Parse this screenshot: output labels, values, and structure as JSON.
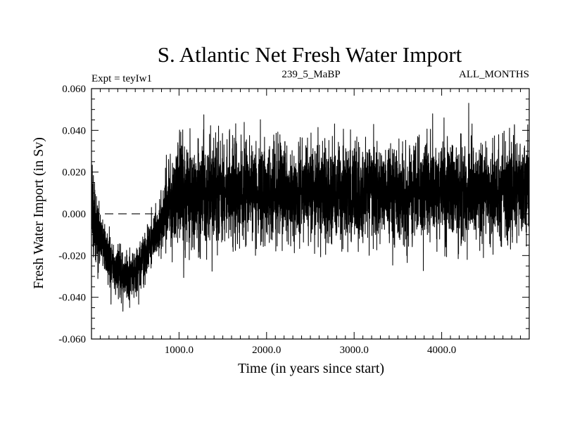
{
  "chart_data": {
    "type": "line",
    "title": "S. Atlantic Net Fresh Water Import",
    "subtitle_left": "Expt = teyIw1",
    "subtitle_center": "239_5_MaBP",
    "subtitle_right": "ALL_MONTHS",
    "xlabel": "Time (in years since start)",
    "ylabel": "Fresh Water Import (in Sv)",
    "xlim": [
      0,
      5000
    ],
    "ylim": [
      -0.06,
      0.06
    ],
    "x_ticks": [
      1000,
      2000,
      3000,
      4000
    ],
    "x_tick_labels": [
      "1000.0",
      "2000.0",
      "3000.0",
      "4000.0"
    ],
    "y_ticks": [
      -0.06,
      -0.04,
      -0.02,
      0.0,
      0.02,
      0.04,
      0.06
    ],
    "y_tick_labels": [
      "-0.060",
      "-0.040",
      "-0.020",
      "0.000",
      "0.020",
      "0.040",
      "0.060"
    ],
    "reference_line": {
      "y": 0.0,
      "style": "dashed",
      "x_range": [
        0,
        800
      ]
    },
    "series": [
      {
        "name": "Net fresh water import",
        "color": "#000000",
        "x": [
          0,
          10,
          25,
          50,
          75,
          100,
          150,
          200,
          250,
          300,
          350,
          400,
          450,
          500,
          550,
          600,
          650,
          700,
          750,
          800,
          850,
          900,
          950,
          1000,
          1100,
          1200,
          1400,
          1600,
          1800,
          2000,
          2200,
          2400,
          2600,
          2800,
          3000,
          3200,
          3400,
          3600,
          3800,
          4000,
          4200,
          4400,
          4600,
          4800,
          5000
        ],
        "values": [
          0.0,
          0.008,
          -0.002,
          -0.008,
          -0.01,
          -0.012,
          -0.016,
          -0.022,
          -0.026,
          -0.028,
          -0.03,
          -0.03,
          -0.029,
          -0.027,
          -0.024,
          -0.021,
          -0.017,
          -0.013,
          -0.008,
          -0.004,
          0.0,
          0.004,
          0.007,
          0.009,
          0.01,
          0.01,
          0.01,
          0.01,
          0.009,
          0.01,
          0.01,
          0.011,
          0.011,
          0.01,
          0.011,
          0.011,
          0.01,
          0.01,
          0.011,
          0.011,
          0.012,
          0.011,
          0.011,
          0.012,
          0.012
        ],
        "variability": [
          0.01,
          0.014,
          0.013,
          0.01,
          0.01,
          0.009,
          0.008,
          0.008,
          0.008,
          0.008,
          0.008,
          0.008,
          0.008,
          0.008,
          0.008,
          0.008,
          0.008,
          0.008,
          0.009,
          0.01,
          0.011,
          0.012,
          0.014,
          0.016,
          0.017,
          0.017,
          0.016,
          0.016,
          0.015,
          0.015,
          0.015,
          0.015,
          0.016,
          0.016,
          0.016,
          0.016,
          0.016,
          0.017,
          0.016,
          0.016,
          0.016,
          0.016,
          0.016,
          0.016,
          0.015
        ]
      }
    ],
    "sample_count": 5000
  }
}
